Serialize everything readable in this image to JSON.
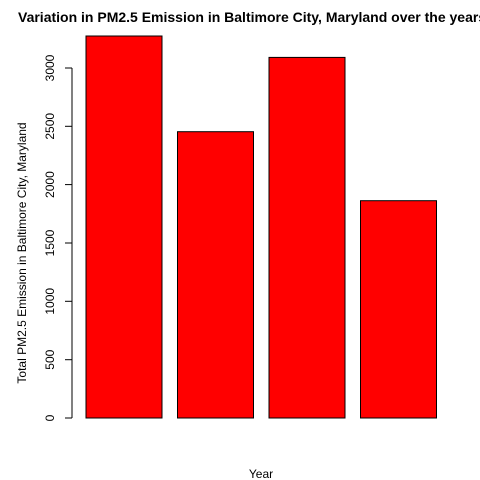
{
  "chart_data": {
    "type": "bar",
    "title": "Variation in PM2.5 Emission in Baltimore City, Maryland over the years",
    "xlabel": "Year",
    "ylabel": "Total PM2.5 Emission in Baltimore City, Maryland",
    "categories": [
      "",
      "",
      "",
      ""
    ],
    "values": [
      3274,
      2454,
      3091,
      1862
    ],
    "yticks": [
      0,
      500,
      1000,
      1500,
      2000,
      2500,
      3000
    ],
    "ylim": [
      0,
      3274
    ],
    "grid": false,
    "legend": "none",
    "colors": {
      "bar_fill": "#ff0000",
      "bar_stroke": "#000000",
      "axis": "#000000",
      "text": "#000000"
    }
  }
}
